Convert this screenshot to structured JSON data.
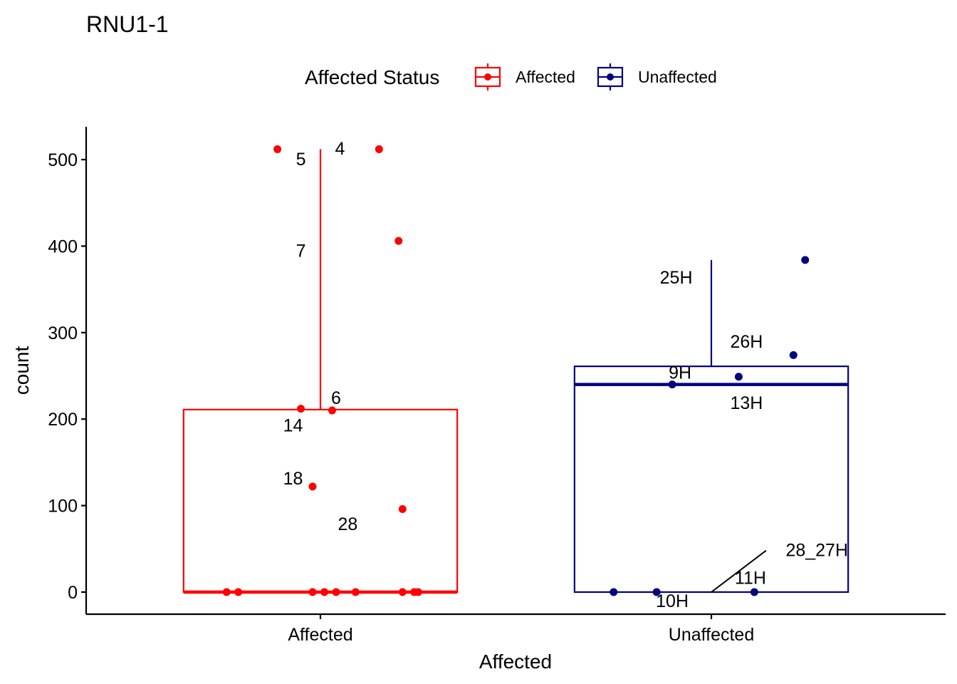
{
  "title": "RNU1-1",
  "legend": {
    "title": "Affected Status",
    "items": [
      {
        "label": "Affected",
        "color": "#FF0000"
      },
      {
        "label": "Unaffected",
        "color": "#000080"
      }
    ]
  },
  "chart_data": {
    "type": "box",
    "title": "RNU1-1",
    "xlabel": "Affected",
    "ylabel": "count",
    "categories": [
      "Affected",
      "Unaffected"
    ],
    "ylim": [
      -25,
      535
    ],
    "yticks": [
      0,
      100,
      200,
      300,
      400,
      500
    ],
    "grid": false,
    "legend_position": "top",
    "boxes": [
      {
        "category": "Affected",
        "color": "#FF0000",
        "q1": 0,
        "median": 0,
        "q3": 211,
        "whisker_low": 0,
        "whisker_high": 512
      },
      {
        "category": "Unaffected",
        "color": "#000080",
        "q1": 0,
        "median": 240,
        "q3": 261,
        "whisker_low": 0,
        "whisker_high": 384
      }
    ],
    "points": [
      {
        "group": "Affected",
        "jitter": -0.11,
        "y": 512
      },
      {
        "group": "Affected",
        "jitter": 0.15,
        "y": 512
      },
      {
        "group": "Affected",
        "jitter": 0.2,
        "y": 406
      },
      {
        "group": "Affected",
        "jitter": -0.05,
        "y": 212
      },
      {
        "group": "Affected",
        "jitter": 0.03,
        "y": 210
      },
      {
        "group": "Affected",
        "jitter": -0.02,
        "y": 122
      },
      {
        "group": "Affected",
        "jitter": 0.21,
        "y": 96
      },
      {
        "group": "Affected",
        "jitter": -0.24,
        "y": 0
      },
      {
        "group": "Affected",
        "jitter": -0.21,
        "y": 0
      },
      {
        "group": "Affected",
        "jitter": -0.02,
        "y": 0
      },
      {
        "group": "Affected",
        "jitter": 0.01,
        "y": 0
      },
      {
        "group": "Affected",
        "jitter": 0.04,
        "y": 0
      },
      {
        "group": "Affected",
        "jitter": 0.09,
        "y": 0
      },
      {
        "group": "Affected",
        "jitter": 0.21,
        "y": 0
      },
      {
        "group": "Affected",
        "jitter": 0.24,
        "y": 0
      },
      {
        "group": "Affected",
        "jitter": 0.25,
        "y": 0
      },
      {
        "group": "Unaffected",
        "jitter": 0.24,
        "y": 384
      },
      {
        "group": "Unaffected",
        "jitter": 0.21,
        "y": 274
      },
      {
        "group": "Unaffected",
        "jitter": 0.07,
        "y": 249
      },
      {
        "group": "Unaffected",
        "jitter": -0.1,
        "y": 240
      },
      {
        "group": "Unaffected",
        "jitter": -0.25,
        "y": 0
      },
      {
        "group": "Unaffected",
        "jitter": -0.14,
        "y": 0
      },
      {
        "group": "Unaffected",
        "jitter": 0.11,
        "y": 0
      }
    ],
    "labels": [
      {
        "text": "4",
        "group": "Affected",
        "x_offset": 0.05,
        "y": 513
      },
      {
        "text": "5",
        "group": "Affected",
        "x_offset": -0.05,
        "y": 501
      },
      {
        "text": "7",
        "group": "Affected",
        "x_offset": -0.05,
        "y": 395
      },
      {
        "text": "6",
        "group": "Affected",
        "x_offset": 0.04,
        "y": 225
      },
      {
        "text": "14",
        "group": "Affected",
        "x_offset": -0.07,
        "y": 193
      },
      {
        "text": "18",
        "group": "Affected",
        "x_offset": -0.07,
        "y": 132
      },
      {
        "text": "28",
        "group": "Affected",
        "x_offset": 0.07,
        "y": 79
      },
      {
        "text": "25H",
        "group": "Unaffected",
        "x_offset": -0.09,
        "y": 364
      },
      {
        "text": "26H",
        "group": "Unaffected",
        "x_offset": 0.09,
        "y": 290
      },
      {
        "text": "9H",
        "group": "Unaffected",
        "x_offset": -0.08,
        "y": 254
      },
      {
        "text": "13H",
        "group": "Unaffected",
        "x_offset": 0.09,
        "y": 219
      },
      {
        "text": "28_27H",
        "group": "Unaffected",
        "x_offset": 0.27,
        "y": 49
      },
      {
        "text": "11H",
        "group": "Unaffected",
        "x_offset": 0.1,
        "y": 17
      },
      {
        "text": "10H",
        "group": "Unaffected",
        "x_offset": -0.1,
        "y": -10
      }
    ],
    "leader_lines": [
      {
        "group": "Unaffected",
        "from": [
          0.0,
          0
        ],
        "to": [
          0.14,
          48
        ]
      }
    ]
  }
}
